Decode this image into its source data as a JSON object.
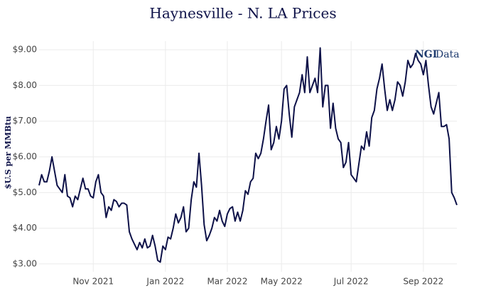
{
  "chart_data": {
    "type": "line",
    "title": "Haynesville - N. LA Prices",
    "y_label": "$U.S per MMBtu",
    "logo": [
      "NGI",
      "Data"
    ],
    "categories": [
      null,
      null,
      null,
      null,
      null,
      null,
      null,
      null,
      null,
      null,
      null,
      null,
      null,
      null,
      null,
      null,
      null,
      null,
      null,
      null,
      null,
      "Nov 2021",
      null,
      null,
      null,
      null,
      null,
      null,
      null,
      null,
      null,
      null,
      null,
      null,
      null,
      null,
      null,
      null,
      null,
      null,
      null,
      null,
      null,
      null,
      null,
      null,
      null,
      null,
      null,
      "Jan 2022",
      null,
      null,
      null,
      null,
      null,
      null,
      null,
      null,
      null,
      null,
      null,
      null,
      null,
      null,
      null,
      null,
      null,
      null,
      null,
      null,
      null,
      null,
      null,
      "Mar 2022",
      null,
      null,
      null,
      null,
      null,
      null,
      null,
      null,
      null,
      null,
      null,
      null,
      null,
      null,
      null,
      null,
      null,
      null,
      null,
      null,
      "May 2022",
      null,
      null,
      null,
      null,
      null,
      null,
      null,
      null,
      null,
      null,
      null,
      null,
      null,
      null,
      null,
      null,
      null,
      null,
      null,
      null,
      null,
      null,
      null,
      null,
      null,
      null,
      "Jul 2022",
      null,
      null,
      null,
      null,
      null,
      null,
      null,
      null,
      null,
      null,
      null,
      null,
      null,
      null,
      null,
      null,
      null,
      null,
      null,
      null,
      null,
      null,
      null,
      null,
      null,
      null,
      null,
      "Sep 2022",
      null,
      null,
      null,
      null,
      null,
      null,
      null,
      null,
      null,
      null,
      null,
      null,
      null
    ],
    "series": [
      {
        "name": "Haynesville - N. LA",
        "color": "#0d1148",
        "values": [
          5.2,
          5.5,
          5.3,
          5.3,
          5.6,
          6.0,
          5.6,
          5.2,
          5.1,
          5.0,
          5.5,
          4.9,
          4.85,
          4.6,
          4.9,
          4.8,
          5.1,
          5.4,
          5.1,
          5.1,
          4.9,
          4.85,
          5.3,
          5.5,
          5.0,
          4.9,
          4.3,
          4.6,
          4.5,
          4.8,
          4.75,
          4.6,
          4.7,
          4.7,
          4.65,
          3.9,
          3.7,
          3.55,
          3.4,
          3.6,
          3.45,
          3.7,
          3.45,
          3.5,
          3.8,
          3.5,
          3.1,
          3.05,
          3.5,
          3.4,
          3.75,
          3.7,
          4.0,
          4.4,
          4.15,
          4.3,
          4.6,
          3.9,
          4.0,
          4.8,
          5.3,
          5.15,
          6.1,
          5.2,
          4.1,
          3.65,
          3.8,
          4.0,
          4.3,
          4.2,
          4.5,
          4.2,
          4.05,
          4.4,
          4.55,
          4.6,
          4.2,
          4.45,
          4.2,
          4.5,
          5.05,
          4.95,
          5.3,
          5.4,
          6.1,
          5.95,
          6.1,
          6.5,
          7.0,
          7.45,
          6.2,
          6.4,
          6.85,
          6.5,
          7.0,
          7.9,
          8.0,
          7.2,
          6.55,
          7.4,
          7.6,
          7.8,
          8.3,
          7.8,
          8.8,
          7.8,
          8.0,
          8.2,
          7.8,
          9.05,
          7.4,
          8.0,
          8.0,
          6.8,
          7.5,
          6.8,
          6.5,
          6.4,
          5.7,
          5.85,
          6.4,
          5.5,
          5.4,
          5.3,
          5.8,
          6.3,
          6.2,
          6.7,
          6.3,
          7.1,
          7.3,
          7.9,
          8.2,
          8.6,
          7.9,
          7.3,
          7.6,
          7.3,
          7.6,
          8.1,
          8.0,
          7.7,
          8.1,
          8.7,
          8.5,
          8.6,
          8.9,
          8.7,
          8.6,
          8.3,
          8.7,
          8.0,
          7.4,
          7.2,
          7.5,
          7.8,
          6.85,
          6.85,
          6.9,
          6.5,
          5.0,
          4.85,
          4.65
        ]
      }
    ],
    "ylim": [
      2.78,
      9.24
    ],
    "yticks": [
      {
        "value": 3,
        "label": "$3.00"
      },
      {
        "value": 4,
        "label": "$4.00"
      },
      {
        "value": 5,
        "label": "$5.00"
      },
      {
        "value": 6,
        "label": "$6.00"
      },
      {
        "value": 7,
        "label": "$7.00"
      },
      {
        "value": 8,
        "label": "$8.00"
      },
      {
        "value": 9,
        "label": "$9.00"
      }
    ],
    "grid": true
  }
}
